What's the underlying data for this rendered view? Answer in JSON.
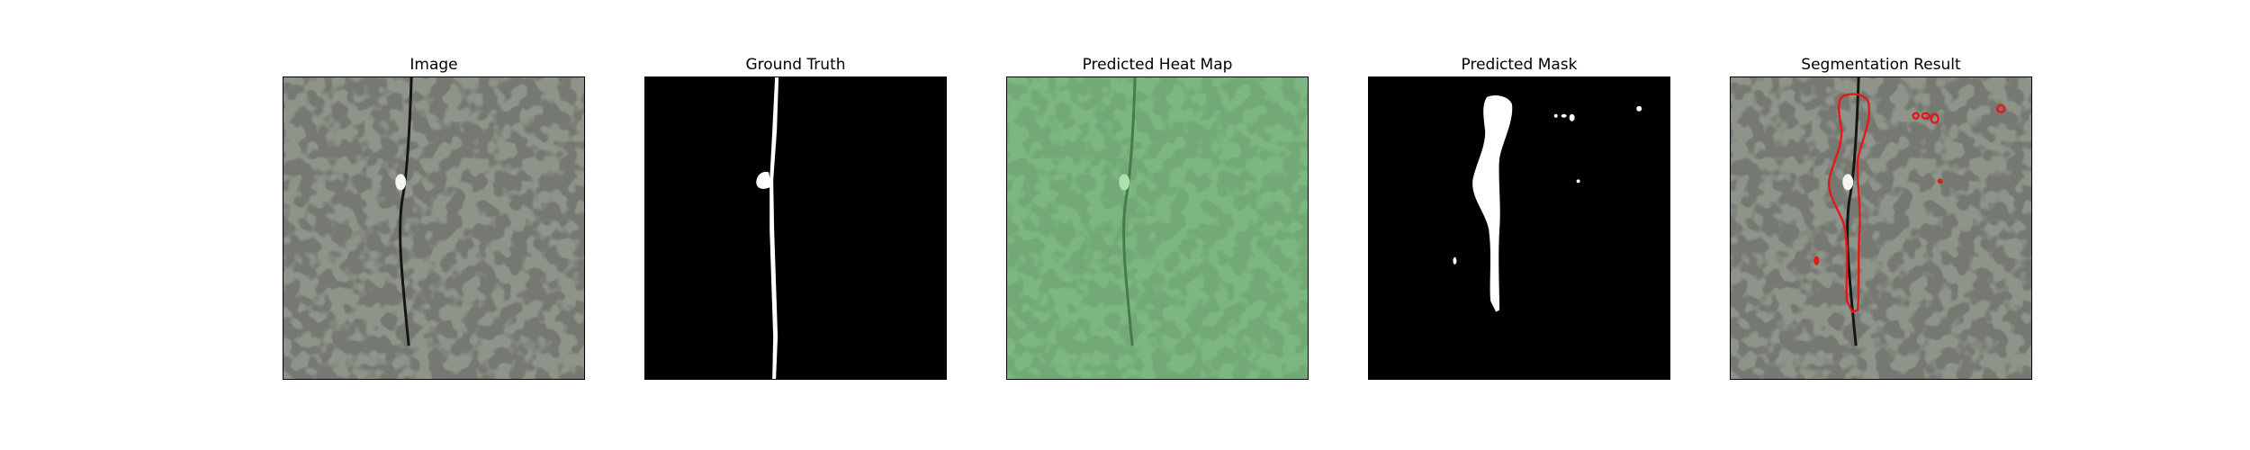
{
  "panels": [
    {
      "title": "Image"
    },
    {
      "title": "Ground Truth"
    },
    {
      "title": "Predicted Heat Map"
    },
    {
      "title": "Predicted Mask"
    },
    {
      "title": "Segmentation Result"
    }
  ],
  "colors": {
    "background": "#ffffff",
    "texture_base": "#8e9489",
    "texture_spots": "#2f312d",
    "mask_white": "#ffffff",
    "mask_black": "#000000",
    "heat_overlay": "#6fd17a",
    "contour_red": "#e01b1b"
  }
}
